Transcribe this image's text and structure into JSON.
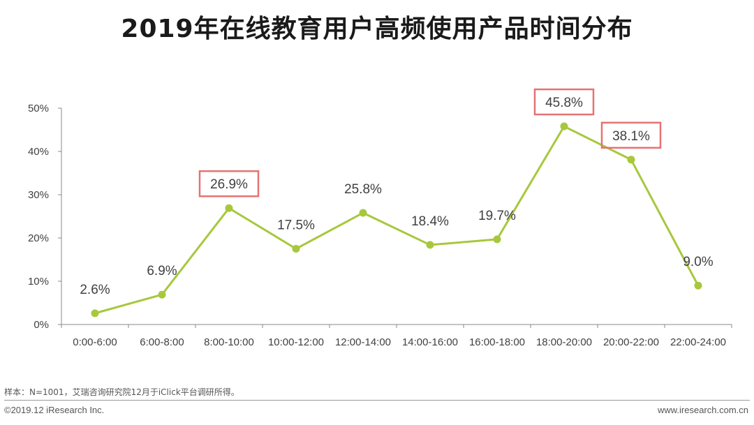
{
  "title": "2019年在线教育用户高频使用产品时间分布",
  "source_note": "样本：N=1001，艾瑞咨询研究院12月于iClick平台调研所得。",
  "copyright": "©2019.12 iResearch Inc.",
  "website": "www.iresearch.com.cn",
  "colors": {
    "line": "#a7c83c",
    "highlight_box": "#e57373",
    "axis": "#888888",
    "text": "#404040"
  },
  "chart_data": {
    "type": "line",
    "title": "2019年在线教育用户高频使用产品时间分布",
    "categories": [
      "0:00-6:00",
      "6:00-8:00",
      "8:00-10:00",
      "10:00-12:00",
      "12:00-14:00",
      "14:00-16:00",
      "16:00-18:00",
      "18:00-20:00",
      "20:00-22:00",
      "22:00-24:00"
    ],
    "values": [
      2.6,
      6.9,
      26.9,
      17.5,
      25.8,
      18.4,
      19.7,
      45.8,
      38.1,
      9.0
    ],
    "value_labels": [
      "2.6%",
      "6.9%",
      "26.9%",
      "17.5%",
      "25.8%",
      "18.4%",
      "19.7%",
      "45.8%",
      "38.1%",
      "9.0%"
    ],
    "highlighted": [
      2,
      7,
      8
    ],
    "y_ticks": [
      "0%",
      "10%",
      "20%",
      "30%",
      "40%",
      "50%"
    ],
    "ylim": [
      0,
      50
    ],
    "grid": false,
    "legend": "none"
  }
}
